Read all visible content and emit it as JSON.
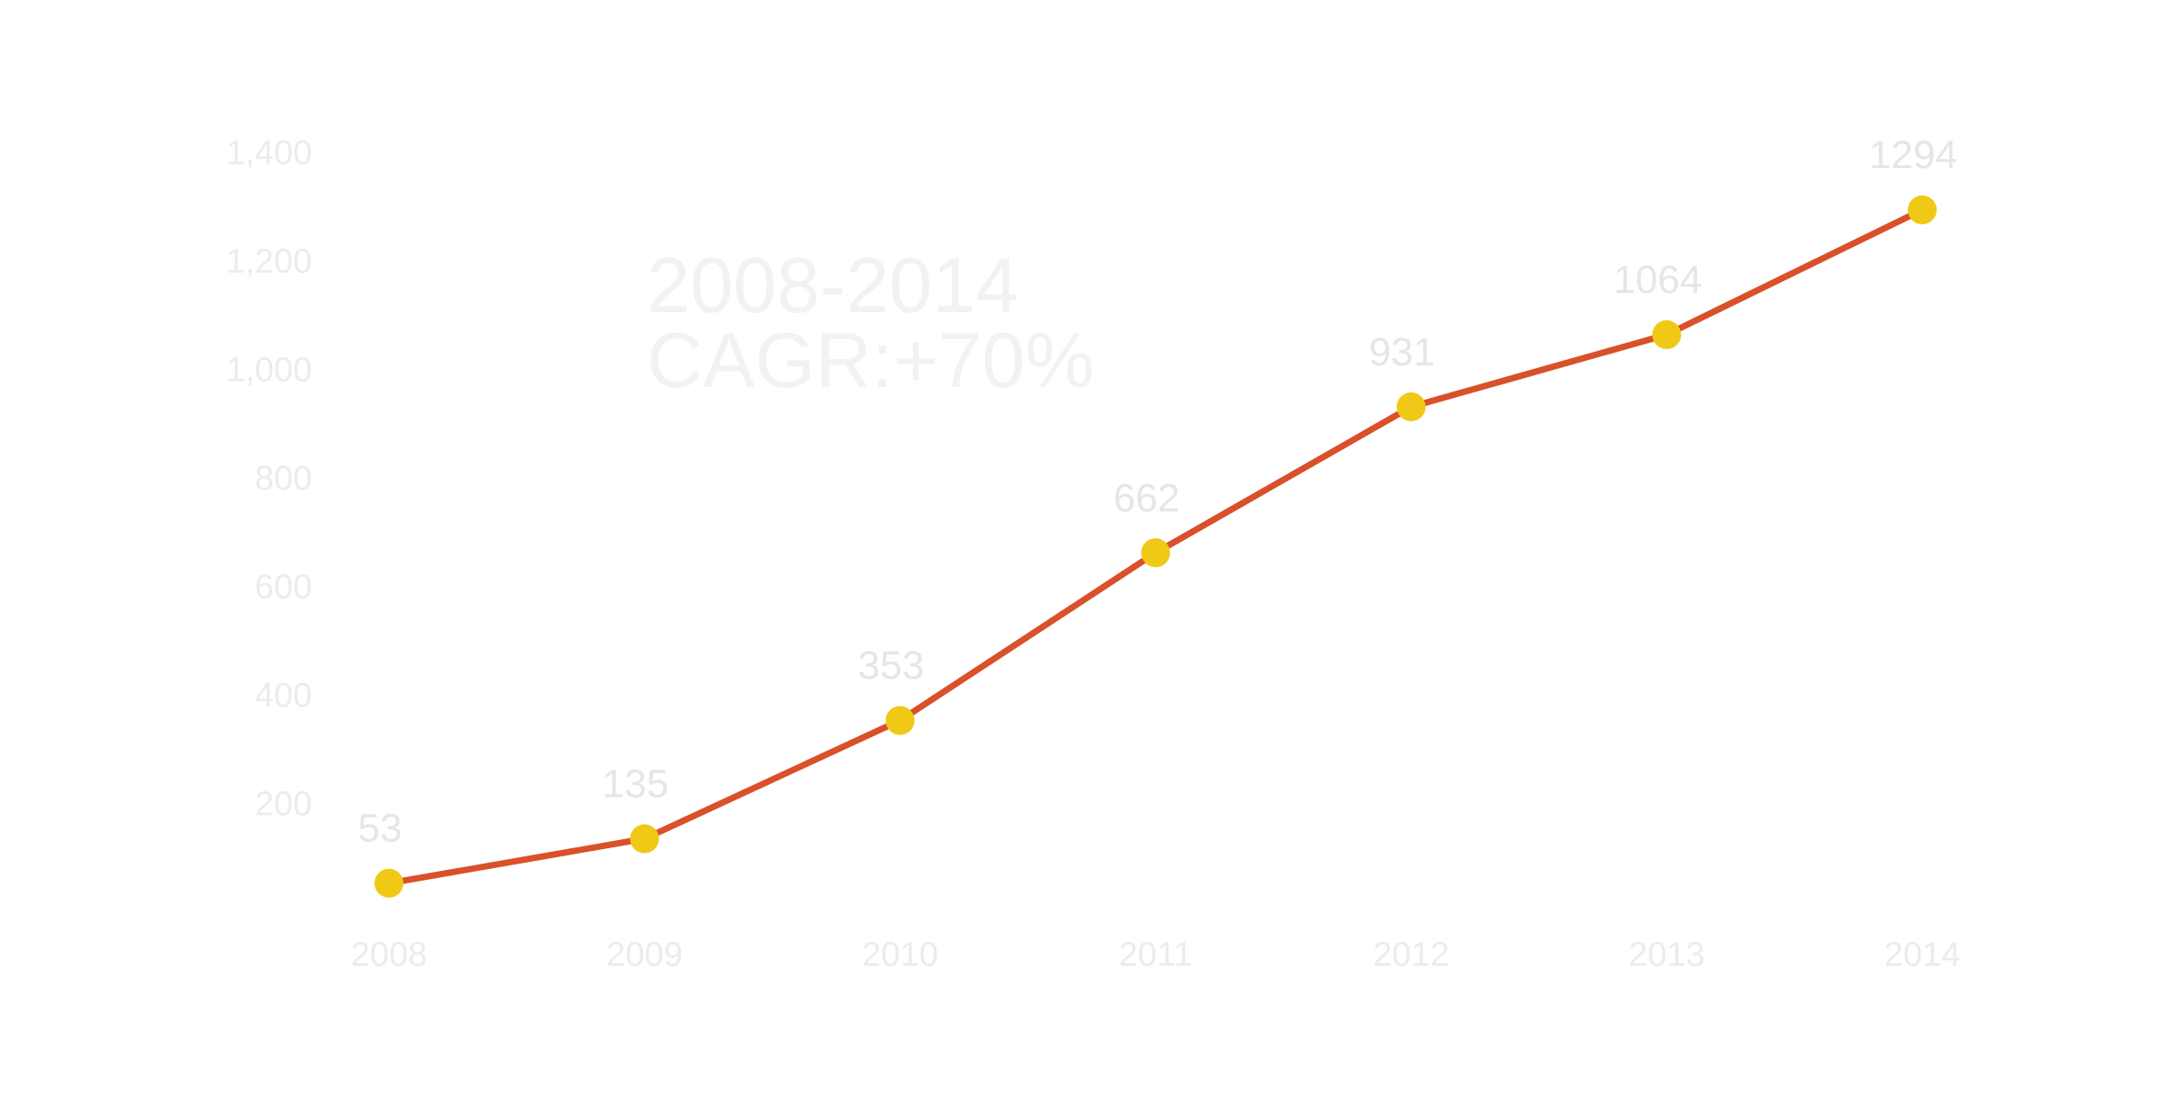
{
  "chart_data": {
    "type": "line",
    "title": "",
    "xlabel": "",
    "ylabel": "",
    "x": [
      "2008",
      "2009",
      "2010",
      "2011",
      "2012",
      "2013",
      "2014"
    ],
    "series": [
      {
        "values": [
          53,
          135,
          353,
          662,
          931,
          1064,
          1294
        ],
        "line_color": "#d9502a",
        "marker_color": "#f0c917"
      }
    ],
    "data_labels": [
      "53",
      "135",
      "353",
      "662",
      "931",
      "1064",
      "1294"
    ],
    "ylim": [
      0,
      1400
    ],
    "yticks": [
      200,
      400,
      600,
      800,
      1000,
      1200,
      1400
    ],
    "ytick_labels": [
      "200",
      "400",
      "600",
      "800",
      "1,000",
      "1,200",
      "1,400"
    ],
    "annotation": [
      "2008-2014",
      "CAGR:+70%"
    ],
    "grid": false,
    "legend": "none",
    "background_color": "#ffffff"
  }
}
